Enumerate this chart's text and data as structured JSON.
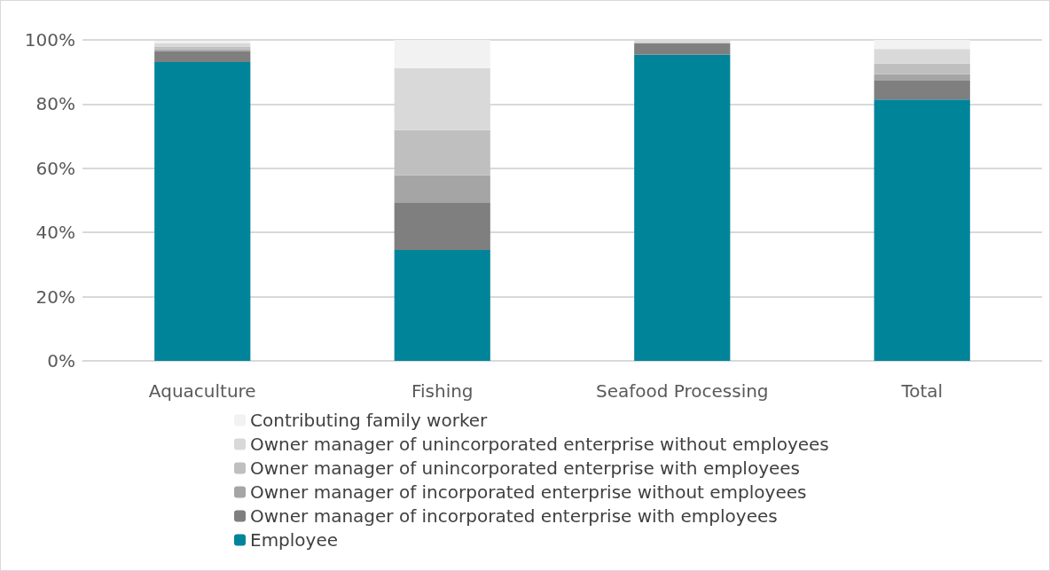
{
  "chart_data": {
    "type": "bar",
    "stacked": true,
    "categories": [
      "Aquaculture",
      "Fishing",
      "Seafood Processing",
      "Total"
    ],
    "series": [
      {
        "name": "Employee",
        "color": "#00849a",
        "values": [
          93.1,
          34.5,
          95.4,
          81.4
        ]
      },
      {
        "name": "Owner manager of incorporated enterprise with employees",
        "color": "#7f7f7f",
        "values": [
          3.4,
          14.9,
          3.6,
          5.9
        ]
      },
      {
        "name": "Owner manager of incorporated enterprise without employees",
        "color": "#a5a5a5",
        "values": [
          0.5,
          8.5,
          0,
          2.0
        ]
      },
      {
        "name": "Owner manager of unincorporated enterprise with employees",
        "color": "#bfbfbf",
        "values": [
          0.9,
          14.0,
          0,
          3.3
        ]
      },
      {
        "name": "Owner manager of unincorporated enterprise without employees",
        "color": "#d9d9d9",
        "values": [
          1.1,
          19.3,
          1.0,
          4.6
        ]
      },
      {
        "name": "Contributing family worker",
        "color": "#f2f2f2",
        "values": [
          0.7,
          8.8,
          0,
          2.8
        ]
      }
    ],
    "ylim": [
      0,
      100
    ],
    "yticks": [
      {
        "value": 0,
        "label": "0%"
      },
      {
        "value": 20,
        "label": "20%"
      },
      {
        "value": 40,
        "label": "40%"
      },
      {
        "value": 60,
        "label": "60%"
      },
      {
        "value": 80,
        "label": "80%"
      },
      {
        "value": 100,
        "label": "100%"
      }
    ],
    "grid": "y",
    "legend": "bottom left"
  }
}
